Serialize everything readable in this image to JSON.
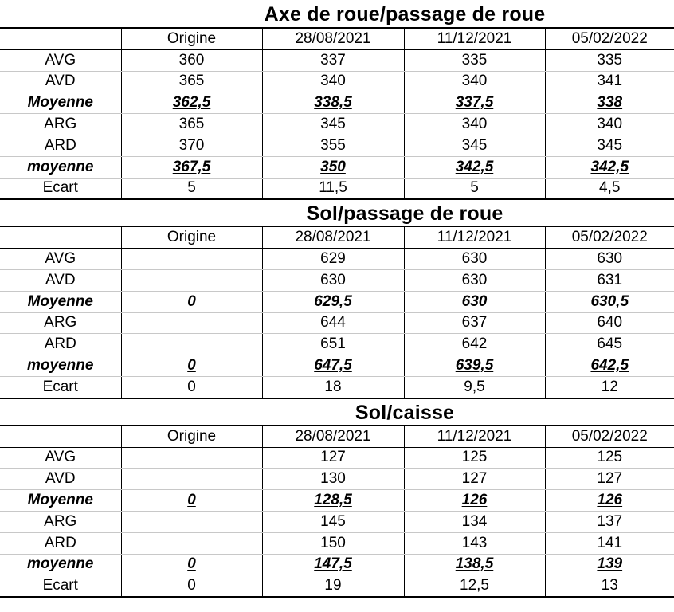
{
  "sections": [
    {
      "title": "Axe de roue/passage de roue",
      "headers": [
        "",
        "Origine",
        "28/08/2021",
        "11/12/2021",
        "05/02/2022"
      ],
      "rows": [
        {
          "label": "AVG",
          "values": [
            "360",
            "337",
            "335",
            "335"
          ],
          "bold": false
        },
        {
          "label": "AVD",
          "values": [
            "365",
            "340",
            "340",
            "341"
          ],
          "bold": false
        },
        {
          "label": "Moyenne",
          "values": [
            "362,5",
            "338,5",
            "337,5",
            "338"
          ],
          "bold": true
        },
        {
          "label": "ARG",
          "values": [
            "365",
            "345",
            "340",
            "340"
          ],
          "bold": false
        },
        {
          "label": "ARD",
          "values": [
            "370",
            "355",
            "345",
            "345"
          ],
          "bold": false
        },
        {
          "label": "moyenne",
          "values": [
            "367,5",
            "350",
            "342,5",
            "342,5"
          ],
          "bold": true
        },
        {
          "label": "Ecart",
          "values": [
            "5",
            "11,5",
            "5",
            "4,5"
          ],
          "bold": false
        }
      ]
    },
    {
      "title": "Sol/passage de roue",
      "headers": [
        "",
        "Origine",
        "28/08/2021",
        "11/12/2021",
        "05/02/2022"
      ],
      "rows": [
        {
          "label": "AVG",
          "values": [
            "",
            "629",
            "630",
            "630"
          ],
          "bold": false
        },
        {
          "label": "AVD",
          "values": [
            "",
            "630",
            "630",
            "631"
          ],
          "bold": false
        },
        {
          "label": "Moyenne",
          "values": [
            "0",
            "629,5",
            "630",
            "630,5"
          ],
          "bold": true
        },
        {
          "label": "ARG",
          "values": [
            "",
            "644",
            "637",
            "640"
          ],
          "bold": false
        },
        {
          "label": "ARD",
          "values": [
            "",
            "651",
            "642",
            "645"
          ],
          "bold": false
        },
        {
          "label": "moyenne",
          "values": [
            "0",
            "647,5",
            "639,5",
            "642,5"
          ],
          "bold": true
        },
        {
          "label": "Ecart",
          "values": [
            "0",
            "18",
            "9,5",
            "12"
          ],
          "bold": false
        }
      ]
    },
    {
      "title": "Sol/caisse",
      "headers": [
        "",
        "Origine",
        "28/08/2021",
        "11/12/2021",
        "05/02/2022"
      ],
      "rows": [
        {
          "label": "AVG",
          "values": [
            "",
            "127",
            "125",
            "125"
          ],
          "bold": false
        },
        {
          "label": "AVD",
          "values": [
            "",
            "130",
            "127",
            "127"
          ],
          "bold": false
        },
        {
          "label": "Moyenne",
          "values": [
            "0",
            "128,5",
            "126",
            "126"
          ],
          "bold": true
        },
        {
          "label": "ARG",
          "values": [
            "",
            "145",
            "134",
            "137"
          ],
          "bold": false
        },
        {
          "label": "ARD",
          "values": [
            "",
            "150",
            "143",
            "141"
          ],
          "bold": false
        },
        {
          "label": "moyenne",
          "values": [
            "0",
            "147,5",
            "138,5",
            "139"
          ],
          "bold": true
        },
        {
          "label": "Ecart",
          "values": [
            "0",
            "19",
            "12,5",
            "13"
          ],
          "bold": false
        }
      ]
    }
  ]
}
